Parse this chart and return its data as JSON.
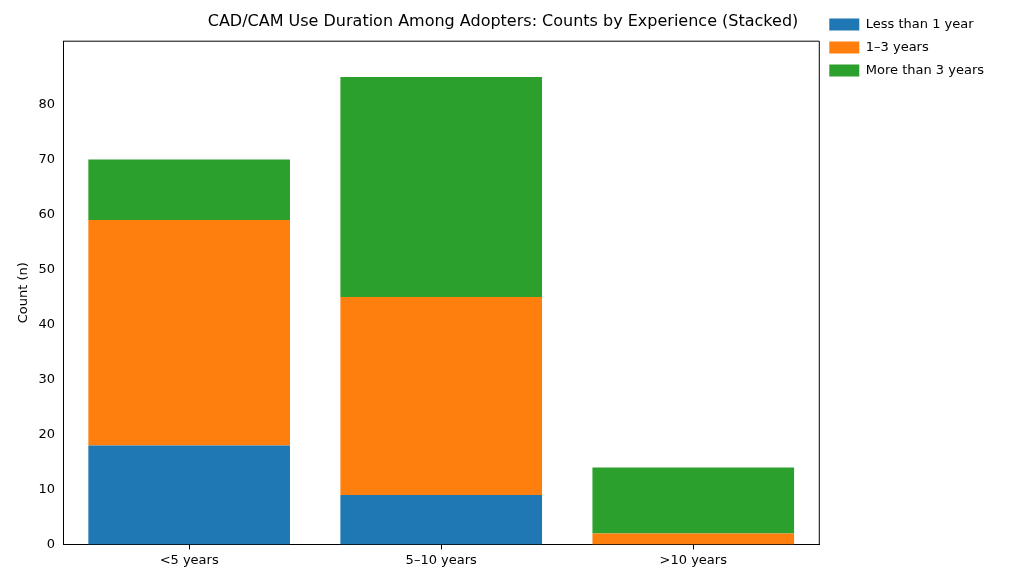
{
  "chart_data": {
    "type": "bar",
    "title": "CAD/CAM Use Duration Among Adopters: Counts by Experience (Stacked)",
    "ylabel": "Count (n)",
    "categories": [
      "<5 years",
      "5–10 years",
      ">10 years"
    ],
    "stacked": true,
    "series": [
      {
        "name": "Less than 1 year",
        "color": "#1f77b4",
        "values": [
          18,
          9,
          0
        ]
      },
      {
        "name": "1–3 years",
        "color": "#ff7f0e",
        "values": [
          41,
          36,
          2
        ]
      },
      {
        "name": "More than 3 years",
        "color": "#2ca02c",
        "values": [
          11,
          40,
          12
        ]
      }
    ],
    "ylim": [
      0,
      91.5
    ],
    "yticks": [
      0,
      10,
      20,
      30,
      40,
      50,
      60,
      70,
      80
    ],
    "grid": false,
    "legend": "top right"
  }
}
